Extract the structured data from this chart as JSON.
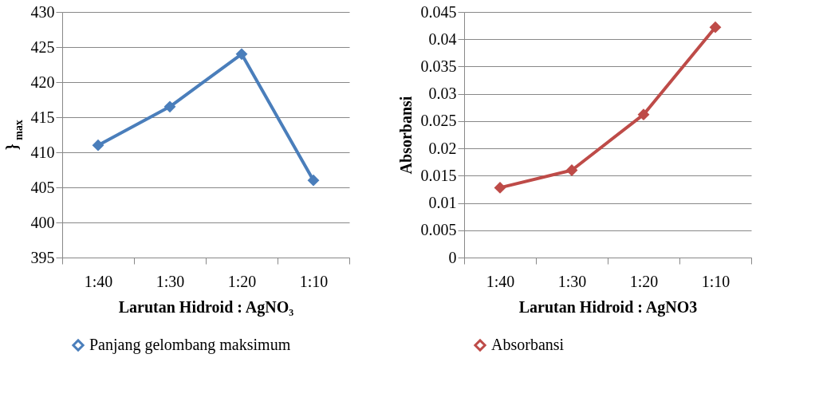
{
  "chart_data": [
    {
      "type": "line",
      "categories": [
        "1:40",
        "1:30",
        "1:20",
        "1:10"
      ],
      "series": [
        {
          "name": "Panjang gelombang maksimum",
          "color": "#4a7ebb",
          "values": [
            411,
            416.5,
            424,
            406
          ]
        }
      ],
      "ylabel": "}$_{max}$",
      "xlabel": "Larutan Hidroid : AgNO₃",
      "ylim": [
        395,
        430
      ],
      "yticks": [
        395,
        400,
        405,
        410,
        415,
        420,
        425,
        430
      ],
      "grid": "y",
      "legend": "bottom",
      "marker": "diamond",
      "line_style": "solid"
    },
    {
      "type": "line",
      "categories": [
        "1:40",
        "1:30",
        "1:20",
        "1:10"
      ],
      "series": [
        {
          "name": "Absorbansi",
          "color": "#be4b48",
          "values": [
            0.0128,
            0.016,
            0.0262,
            0.0422
          ]
        }
      ],
      "ylabel": "Absorbansi",
      "xlabel": "Larutan Hidroid : AgNO3",
      "ylim": [
        0,
        0.045
      ],
      "yticks": [
        0,
        0.005,
        0.01,
        0.015,
        0.02,
        0.025,
        0.03,
        0.035,
        0.04,
        0.045
      ],
      "grid": "y",
      "legend": "bottom",
      "marker": "diamond",
      "line_style": "solid"
    }
  ]
}
